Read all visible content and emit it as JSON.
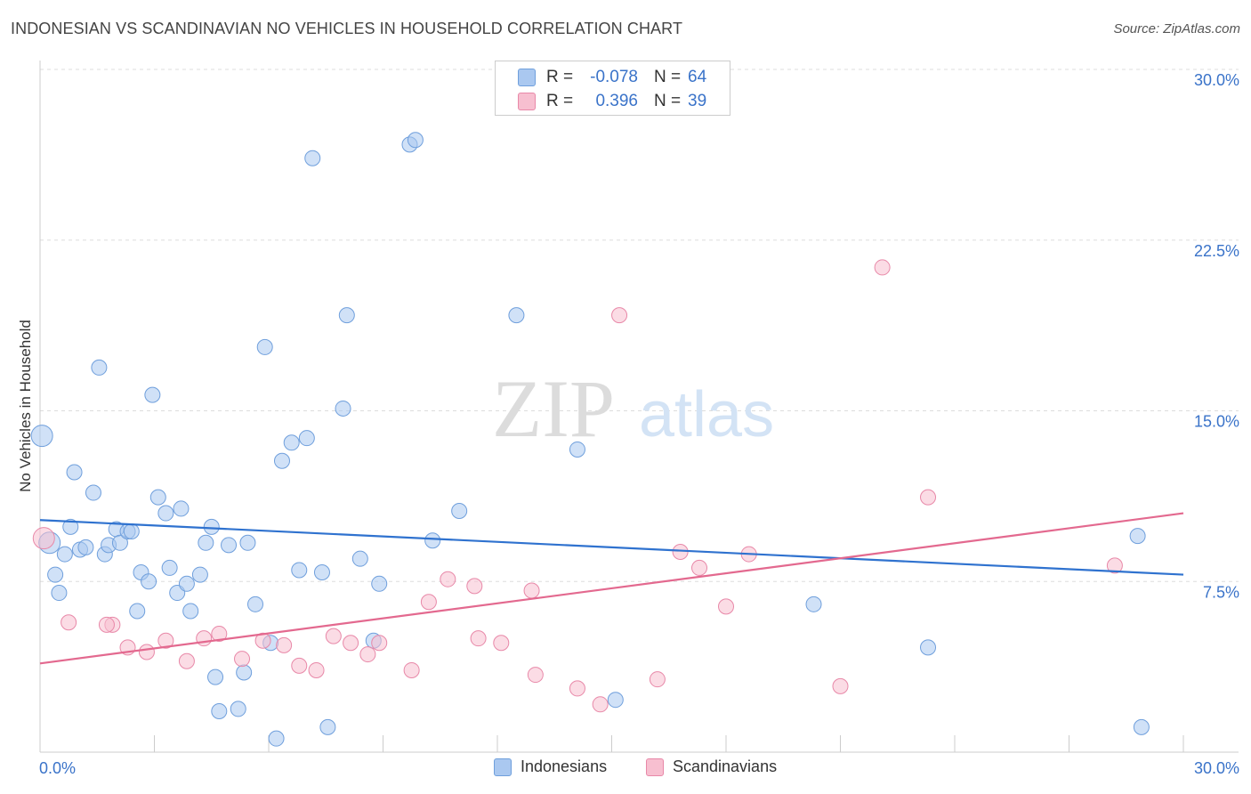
{
  "header": {
    "title": "INDONESIAN VS SCANDINAVIAN NO VEHICLES IN HOUSEHOLD CORRELATION CHART",
    "source": "Source: ZipAtlas.com"
  },
  "watermark": {
    "zip": "ZIP",
    "atlas": "atlas"
  },
  "stats_legend": [
    {
      "r_label": "R =",
      "r_value": "-0.078",
      "n_label": "N =",
      "n_value": "64"
    },
    {
      "r_label": "R =",
      "r_value": "0.396",
      "n_label": "N =",
      "n_value": "39"
    }
  ],
  "bottom_legend": [
    {
      "label": "Indonesians"
    },
    {
      "label": "Scandinavians"
    }
  ],
  "colors": {
    "blue_fill": "#aac8f0",
    "blue_stroke": "#6f9fdc",
    "blue_line": "#2f72cf",
    "pink_fill": "#f7bfd0",
    "pink_stroke": "#e888a8",
    "pink_line": "#e3698f",
    "tick_text": "#3a73c9",
    "grid": "#dddddd"
  },
  "chart_data": {
    "type": "scatter",
    "title": "INDONESIAN VS SCANDINAVIAN NO VEHICLES IN HOUSEHOLD CORRELATION CHART",
    "xlabel": "",
    "ylabel": "No Vehicles in Household",
    "xlim": [
      0,
      30
    ],
    "ylim": [
      0,
      30
    ],
    "x_tick_labels": [
      "0.0%",
      "30.0%"
    ],
    "y_tick_values": [
      7.5,
      15.0,
      22.5,
      30.0
    ],
    "y_tick_labels": [
      "7.5%",
      "15.0%",
      "22.5%",
      "30.0%"
    ],
    "grid": true,
    "legend_position": "top-center",
    "series": [
      {
        "name": "Indonesians",
        "trend": {
          "x": [
            0,
            30
          ],
          "y": [
            10.2,
            7.8
          ]
        },
        "points": [
          [
            0.05,
            13.9
          ],
          [
            0.25,
            9.2
          ],
          [
            0.4,
            7.8
          ],
          [
            0.5,
            7.0
          ],
          [
            0.65,
            8.7
          ],
          [
            0.8,
            9.9
          ],
          [
            0.9,
            12.3
          ],
          [
            1.05,
            8.9
          ],
          [
            1.2,
            9.0
          ],
          [
            1.4,
            11.4
          ],
          [
            1.55,
            16.9
          ],
          [
            1.7,
            8.7
          ],
          [
            1.8,
            9.1
          ],
          [
            2.0,
            9.8
          ],
          [
            2.1,
            9.2
          ],
          [
            2.3,
            9.7
          ],
          [
            2.4,
            9.7
          ],
          [
            2.55,
            6.2
          ],
          [
            2.65,
            7.9
          ],
          [
            2.85,
            7.5
          ],
          [
            2.95,
            15.7
          ],
          [
            3.1,
            11.2
          ],
          [
            3.3,
            10.5
          ],
          [
            3.4,
            8.1
          ],
          [
            3.6,
            7.0
          ],
          [
            3.7,
            10.7
          ],
          [
            3.85,
            7.4
          ],
          [
            3.95,
            6.2
          ],
          [
            4.2,
            7.8
          ],
          [
            4.35,
            9.2
          ],
          [
            4.5,
            9.9
          ],
          [
            4.6,
            3.3
          ],
          [
            4.7,
            1.8
          ],
          [
            4.95,
            9.1
          ],
          [
            5.2,
            1.9
          ],
          [
            5.35,
            3.5
          ],
          [
            5.45,
            9.2
          ],
          [
            5.65,
            6.5
          ],
          [
            5.9,
            17.8
          ],
          [
            6.05,
            4.8
          ],
          [
            6.2,
            0.6
          ],
          [
            6.35,
            12.8
          ],
          [
            6.6,
            13.6
          ],
          [
            6.8,
            8.0
          ],
          [
            7.0,
            13.8
          ],
          [
            7.15,
            26.1
          ],
          [
            7.4,
            7.9
          ],
          [
            7.55,
            1.1
          ],
          [
            7.95,
            15.1
          ],
          [
            8.05,
            19.2
          ],
          [
            8.4,
            8.5
          ],
          [
            8.75,
            4.9
          ],
          [
            8.9,
            7.4
          ],
          [
            9.7,
            26.7
          ],
          [
            9.85,
            26.9
          ],
          [
            10.3,
            9.3
          ],
          [
            11.0,
            10.6
          ],
          [
            12.5,
            19.2
          ],
          [
            14.1,
            13.3
          ],
          [
            15.1,
            2.3
          ],
          [
            20.3,
            6.5
          ],
          [
            23.3,
            4.6
          ],
          [
            28.8,
            9.5
          ],
          [
            28.9,
            1.1
          ]
        ]
      },
      {
        "name": "Scandinavians",
        "trend": {
          "x": [
            0,
            30
          ],
          "y": [
            3.9,
            10.5
          ]
        },
        "points": [
          [
            0.1,
            9.4
          ],
          [
            0.75,
            5.7
          ],
          [
            1.9,
            5.6
          ],
          [
            1.75,
            5.6
          ],
          [
            2.3,
            4.6
          ],
          [
            2.8,
            4.4
          ],
          [
            3.3,
            4.9
          ],
          [
            3.85,
            4.0
          ],
          [
            4.3,
            5.0
          ],
          [
            4.7,
            5.2
          ],
          [
            5.3,
            4.1
          ],
          [
            5.85,
            4.9
          ],
          [
            6.4,
            4.7
          ],
          [
            6.8,
            3.8
          ],
          [
            7.25,
            3.6
          ],
          [
            7.7,
            5.1
          ],
          [
            8.15,
            4.8
          ],
          [
            8.6,
            4.3
          ],
          [
            8.9,
            4.8
          ],
          [
            9.75,
            3.6
          ],
          [
            10.2,
            6.6
          ],
          [
            10.7,
            7.6
          ],
          [
            11.4,
            7.3
          ],
          [
            11.5,
            5.0
          ],
          [
            12.1,
            4.8
          ],
          [
            12.9,
            7.1
          ],
          [
            13.0,
            3.4
          ],
          [
            14.1,
            2.8
          ],
          [
            14.7,
            2.1
          ],
          [
            15.2,
            19.2
          ],
          [
            16.2,
            3.2
          ],
          [
            16.8,
            8.8
          ],
          [
            17.3,
            8.1
          ],
          [
            18.0,
            6.4
          ],
          [
            18.6,
            8.7
          ],
          [
            21.0,
            2.9
          ],
          [
            22.1,
            21.3
          ],
          [
            23.3,
            11.2
          ],
          [
            28.2,
            8.2
          ]
        ]
      }
    ]
  }
}
